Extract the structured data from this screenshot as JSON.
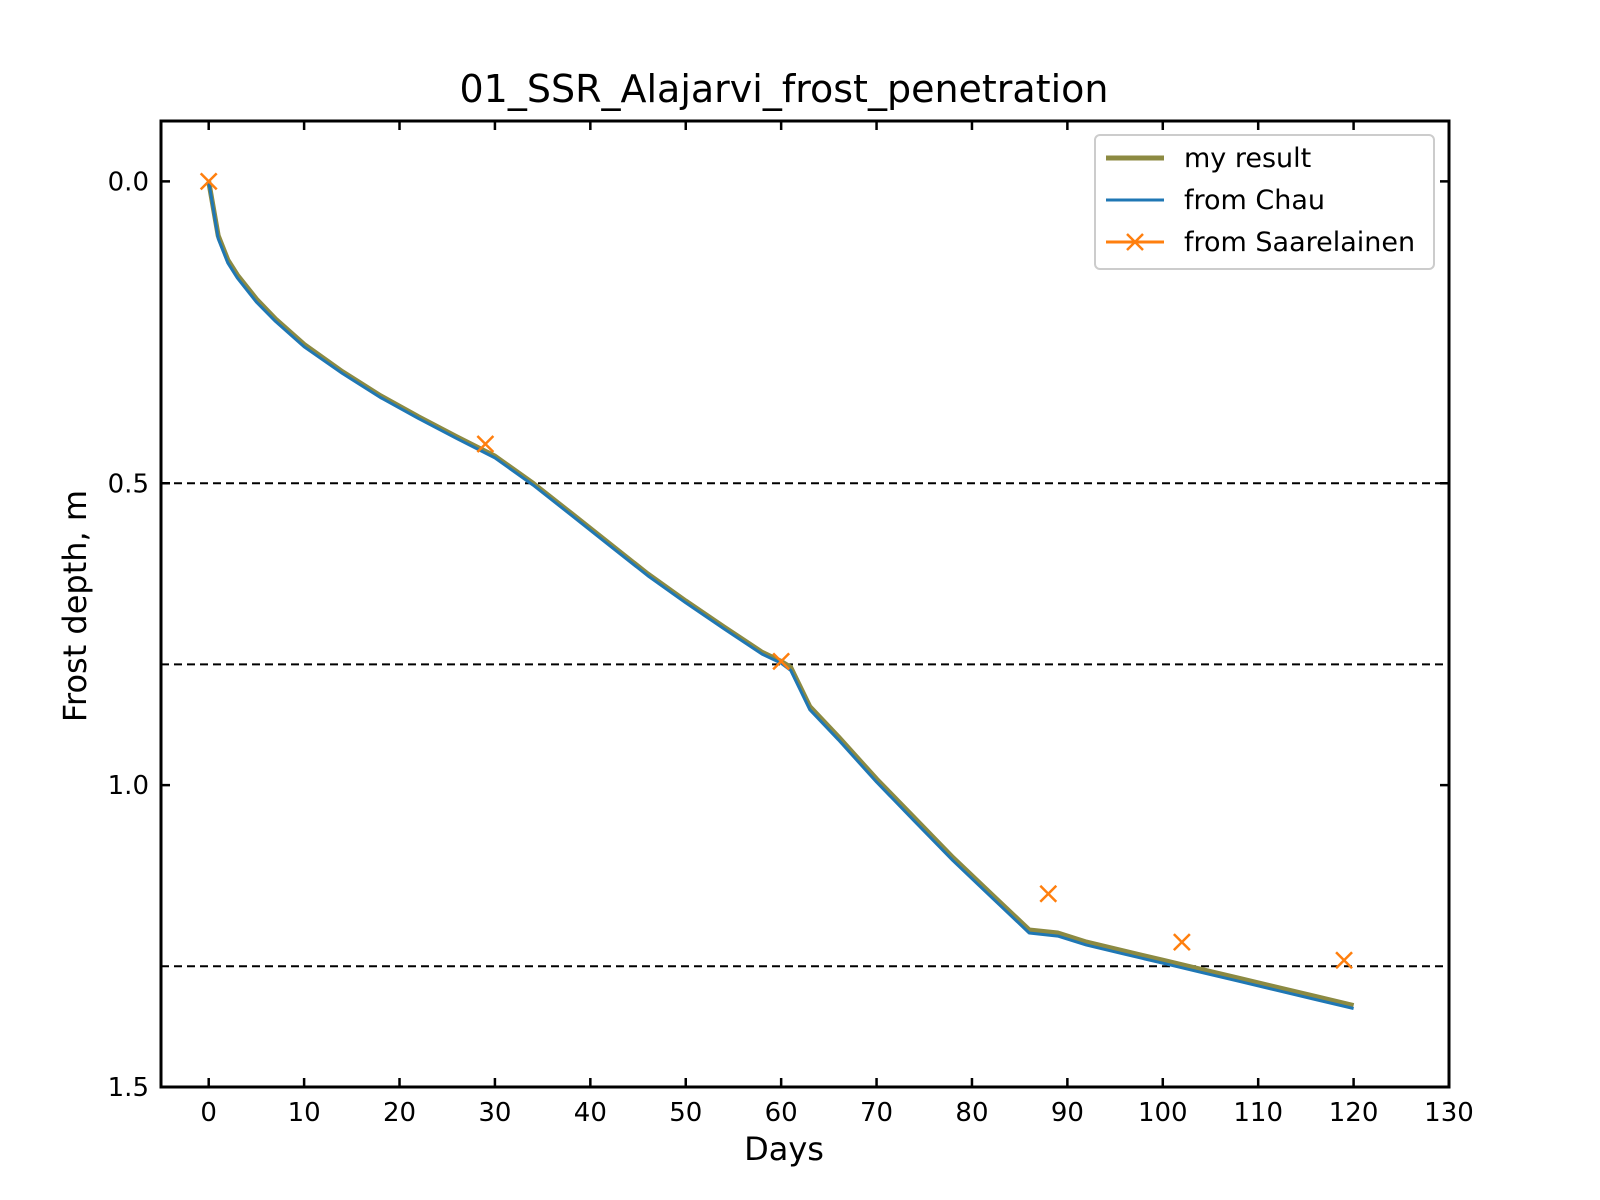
{
  "chart_data": {
    "type": "line",
    "title": "01_SSR_Alajarvi_frost_penetration",
    "xlabel": "Days",
    "ylabel": "Frost depth, m",
    "xlim": [
      -5,
      130
    ],
    "ylim": [
      1.5,
      -0.1
    ],
    "y_inverted": true,
    "xticks": [
      0,
      10,
      20,
      30,
      40,
      50,
      60,
      70,
      80,
      90,
      100,
      110,
      120,
      130
    ],
    "yticks": [
      0.0,
      0.5,
      1.0,
      1.5
    ],
    "xtick_labels": [
      "0",
      "10",
      "20",
      "30",
      "40",
      "50",
      "60",
      "70",
      "80",
      "90",
      "100",
      "110",
      "120",
      "130"
    ],
    "ytick_labels": [
      "0.0",
      "0.5",
      "1.0",
      "1.5"
    ],
    "grid": false,
    "reference_lines_y": [
      0.5,
      0.8,
      1.3
    ],
    "legend_position": "top-right",
    "series": [
      {
        "name": "my result",
        "color": "#8c8a42",
        "style": "line",
        "x": [
          0,
          1,
          2,
          3,
          5,
          7,
          10,
          14,
          18,
          22,
          26,
          30,
          34,
          38,
          42,
          46,
          50,
          54,
          58,
          60,
          61,
          63,
          66,
          70,
          74,
          78,
          82,
          86,
          89,
          92,
          96,
          100,
          104,
          108,
          112,
          116,
          120
        ],
        "y": [
          0.0,
          0.09,
          0.13,
          0.155,
          0.195,
          0.228,
          0.27,
          0.315,
          0.355,
          0.39,
          0.423,
          0.455,
          0.5,
          0.55,
          0.6,
          0.65,
          0.695,
          0.738,
          0.78,
          0.795,
          0.805,
          0.87,
          0.92,
          0.99,
          1.055,
          1.12,
          1.18,
          1.24,
          1.245,
          1.26,
          1.275,
          1.29,
          1.305,
          1.32,
          1.335,
          1.35,
          1.365
        ]
      },
      {
        "name": "from Chau",
        "color": "#1f77b4",
        "style": "line",
        "x": [
          0,
          1,
          2,
          3,
          5,
          7,
          10,
          14,
          18,
          22,
          26,
          30,
          34,
          38,
          42,
          46,
          50,
          54,
          58,
          60,
          61,
          63,
          66,
          70,
          74,
          78,
          82,
          86,
          89,
          92,
          96,
          100,
          104,
          108,
          112,
          116,
          120
        ],
        "y": [
          0.0,
          0.095,
          0.135,
          0.16,
          0.2,
          0.232,
          0.274,
          0.318,
          0.358,
          0.393,
          0.426,
          0.458,
          0.503,
          0.553,
          0.603,
          0.653,
          0.698,
          0.741,
          0.783,
          0.798,
          0.81,
          0.875,
          0.925,
          0.995,
          1.06,
          1.125,
          1.185,
          1.245,
          1.25,
          1.265,
          1.28,
          1.295,
          1.31,
          1.325,
          1.34,
          1.355,
          1.37
        ]
      },
      {
        "name": "from Saarelainen",
        "color": "#ff7f0e",
        "style": "markers-x",
        "x": [
          0,
          29,
          60,
          88,
          102,
          119
        ],
        "y": [
          0.0,
          0.435,
          0.795,
          1.18,
          1.26,
          1.29
        ]
      }
    ]
  }
}
